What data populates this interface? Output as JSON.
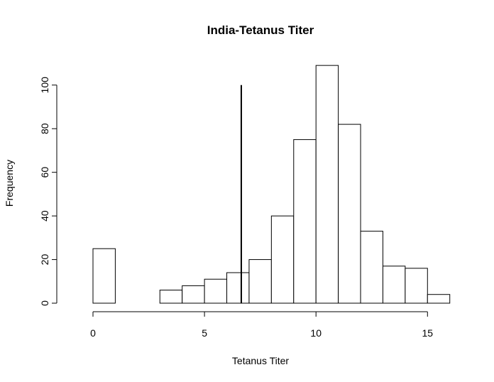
{
  "chart_data": {
    "type": "bar",
    "title": "India-Tetanus Titer",
    "xlabel": "Tetanus Titer",
    "ylabel": "Frequency",
    "bin_edges": [
      0,
      1,
      2,
      3,
      4,
      5,
      6,
      7,
      8,
      9,
      10,
      11,
      12,
      13,
      14,
      15,
      16
    ],
    "values": [
      25,
      0,
      0,
      6,
      8,
      11,
      14,
      20,
      40,
      75,
      109,
      82,
      33,
      17,
      16,
      4
    ],
    "x_ticks": [
      0,
      5,
      10,
      15
    ],
    "y_ticks": [
      0,
      20,
      40,
      60,
      80,
      100
    ],
    "xlim": [
      0,
      16
    ],
    "ylim": [
      0,
      109
    ],
    "reference_line": {
      "x": 6.65,
      "y_top": 100
    },
    "grid": false,
    "legend": "none"
  }
}
